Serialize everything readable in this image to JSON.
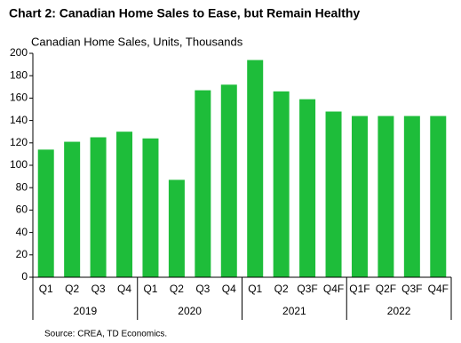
{
  "chart_data": {
    "type": "bar",
    "title": "Chart 2: Canadian Home Sales to Ease, but Remain Healthy",
    "subtitle": "Canadian Home Sales, Units, Thousands",
    "source": "Source:  CREA,  TD Economics.",
    "categories": [
      "Q1",
      "Q2",
      "Q3",
      "Q4",
      "Q1",
      "Q2",
      "Q3",
      "Q4",
      "Q1",
      "Q2",
      "Q3F",
      "Q4F",
      "Q1F",
      "Q2F",
      "Q3F",
      "Q4F"
    ],
    "groups": [
      "2019",
      "2020",
      "2021",
      "2022"
    ],
    "values": [
      114,
      121,
      125,
      130,
      124,
      87,
      167,
      172,
      194,
      166,
      159,
      148,
      144,
      144,
      144,
      144
    ],
    "color": "#1ebd3a",
    "ylim": [
      0,
      200
    ],
    "yticks": [
      0,
      20,
      40,
      60,
      80,
      100,
      120,
      140,
      160,
      180,
      200
    ],
    "grid": false
  }
}
